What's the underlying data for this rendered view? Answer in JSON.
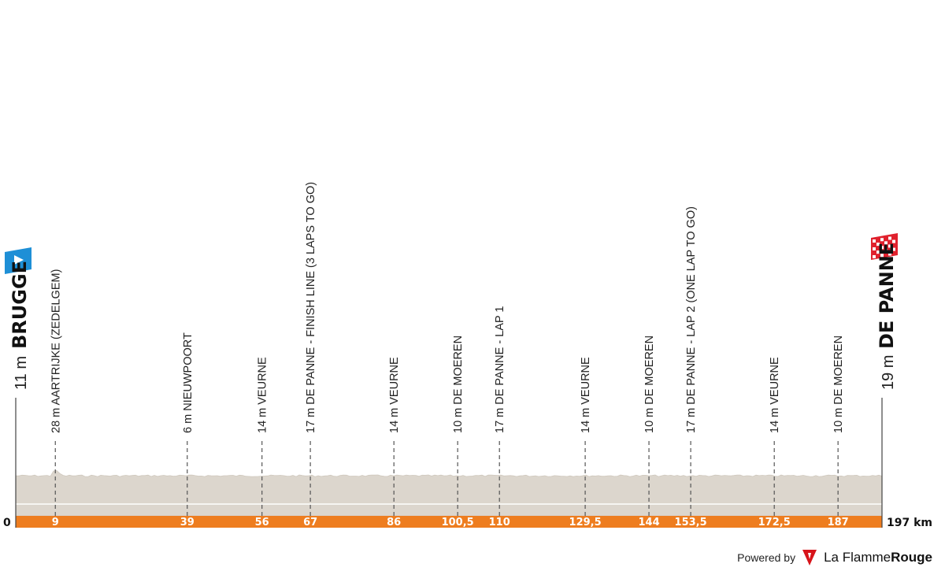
{
  "chart_data": {
    "type": "area",
    "title": "",
    "xlabel": "",
    "ylabel": "",
    "x_unit": "km",
    "xlim": [
      0,
      197
    ],
    "start": {
      "altitude": "11 m",
      "name": "BRUGGE",
      "km": "0"
    },
    "finish": {
      "altitude": "19 m",
      "name": "DE PANNE",
      "km": "197 km"
    },
    "points": [
      {
        "km": 9,
        "km_label": "9",
        "label": "28 m AARTRIJKE (ZEDELGEM)"
      },
      {
        "km": 39,
        "km_label": "39",
        "label": "6 m NIEUWPOORT"
      },
      {
        "km": 56,
        "km_label": "56",
        "label": "14 m VEURNE"
      },
      {
        "km": 67,
        "km_label": "67",
        "label": "17 m DE PANNE - FINISH LINE (3 LAPS TO GO)"
      },
      {
        "km": 86,
        "km_label": "86",
        "label": "14 m VEURNE"
      },
      {
        "km": 100.5,
        "km_label": "100,5",
        "label": "10 m DE MOEREN"
      },
      {
        "km": 110,
        "km_label": "110",
        "label": "17 m DE PANNE - LAP 1"
      },
      {
        "km": 129.5,
        "km_label": "129,5",
        "label": "14 m VEURNE"
      },
      {
        "km": 144,
        "km_label": "144",
        "label": "10 m DE MOEREN"
      },
      {
        "km": 153.5,
        "km_label": "153,5",
        "label": "17 m DE PANNE - LAP 2 (ONE LAP TO GO)"
      },
      {
        "km": 172.5,
        "km_label": "172,5",
        "label": "14 m VEURNE"
      },
      {
        "km": 187,
        "km_label": "187",
        "label": "10 m DE MOEREN"
      }
    ],
    "colors": {
      "profile_fill": "#dcd6cd",
      "profile_edge": "#cfc8bd",
      "distance_bar": "#ee7d1f",
      "start_marker": "#1e8fd6",
      "finish_marker": "#e0212d"
    }
  },
  "footer": {
    "powered_by": "Powered by",
    "brand_main": "La Flamme",
    "brand_bold": "Rouge",
    "logo_icon": "flamme-rouge-logo-icon"
  }
}
